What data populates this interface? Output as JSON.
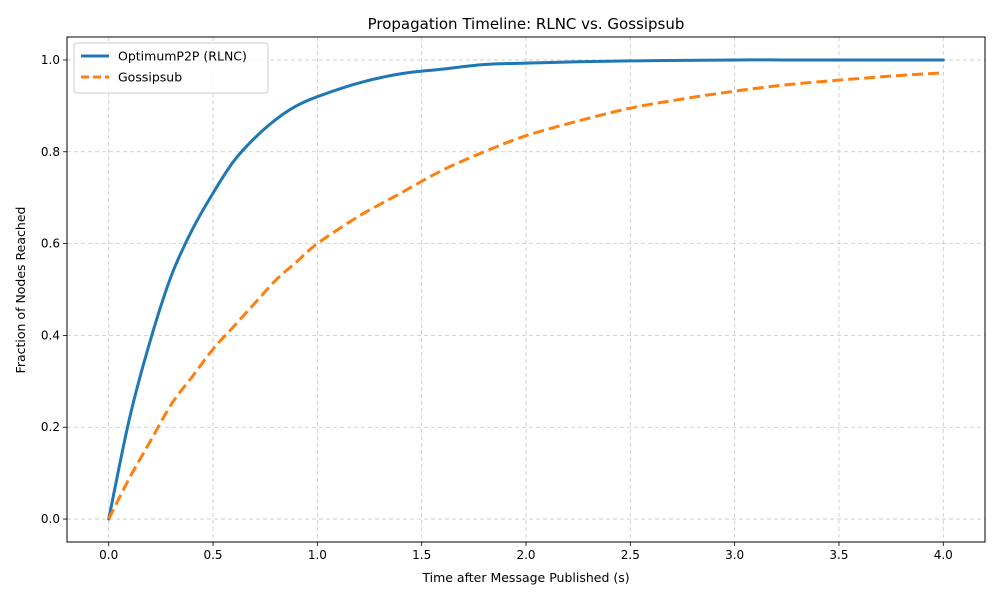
{
  "chart_data": {
    "type": "line",
    "title": "Propagation Timeline: RLNC vs. Gossipsub",
    "xlabel": "Time after Message Published (s)",
    "ylabel": "Fraction of Nodes Reached",
    "xlim": [
      -0.2,
      4.2
    ],
    "ylim": [
      -0.05,
      1.05
    ],
    "xticks": [
      0.0,
      0.5,
      1.0,
      1.5,
      2.0,
      2.5,
      3.0,
      3.5,
      4.0
    ],
    "xtick_labels": [
      "0.0",
      "0.5",
      "1.0",
      "1.5",
      "2.0",
      "2.5",
      "3.0",
      "3.5",
      "4.0"
    ],
    "yticks": [
      0.0,
      0.2,
      0.4,
      0.6,
      0.8,
      1.0
    ],
    "ytick_labels": [
      "0.0",
      "0.2",
      "0.4",
      "0.6",
      "0.8",
      "1.0"
    ],
    "grid": true,
    "legend_position": "top-left",
    "x": [
      0.0,
      0.1,
      0.2,
      0.3,
      0.4,
      0.5,
      0.6,
      0.7,
      0.8,
      0.9,
      1.0,
      1.2,
      1.4,
      1.6,
      1.8,
      2.0,
      2.25,
      2.5,
      2.75,
      3.0,
      3.25,
      3.5,
      3.75,
      4.0
    ],
    "series": [
      {
        "name": "OptimumP2P (RLNC)",
        "color": "#1f77b4",
        "style": "solid",
        "values": [
          0.0,
          0.22,
          0.39,
          0.53,
          0.63,
          0.71,
          0.78,
          0.83,
          0.87,
          0.9,
          0.92,
          0.95,
          0.97,
          0.98,
          0.99,
          0.993,
          0.996,
          0.998,
          0.999,
          1.0,
          1.0,
          1.0,
          1.0,
          1.0
        ]
      },
      {
        "name": "Gossipsub",
        "color": "#ff7f0e",
        "style": "dashed",
        "values": [
          0.0,
          0.09,
          0.17,
          0.25,
          0.31,
          0.37,
          0.42,
          0.47,
          0.52,
          0.56,
          0.6,
          0.66,
          0.71,
          0.76,
          0.8,
          0.835,
          0.867,
          0.895,
          0.915,
          0.932,
          0.946,
          0.956,
          0.965,
          0.972
        ]
      }
    ]
  }
}
